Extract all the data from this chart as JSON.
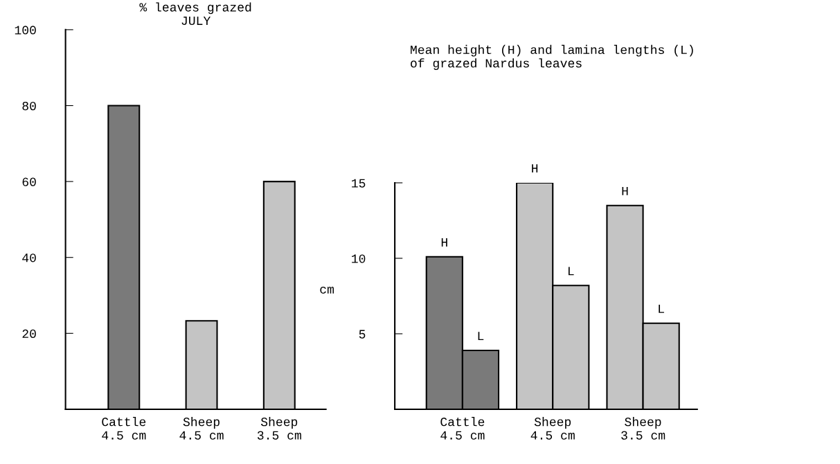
{
  "chart_data": [
    {
      "type": "bar",
      "title": "% leaves grazed\nJULY",
      "categories": [
        "Cattle\n4.5 cm",
        "Sheep\n4.5 cm",
        "Sheep\n3.5 cm"
      ],
      "values": [
        80,
        23.3,
        60
      ],
      "colors": [
        "#7a7a7a",
        "#c4c4c4",
        "#c4c4c4"
      ],
      "ylim": [
        0,
        100
      ],
      "yticks": [
        {
          "value": 0,
          "label": null
        },
        20,
        40,
        60,
        80,
        100
      ],
      "grid": false
    },
    {
      "type": "bar",
      "title": "Mean height (H) and lamina lengths (L)\nof grazed Nardus leaves",
      "ylabel": "cm",
      "categories": [
        "Cattle\n4.5 cm",
        "Sheep\n4.5 cm",
        "Sheep\n3.5 cm"
      ],
      "series": [
        {
          "name": "H",
          "colors": [
            "#7a7a7a",
            "#c4c4c4",
            "#c4c4c4"
          ],
          "values": [
            10.1,
            15,
            13.5
          ]
        },
        {
          "name": "L",
          "colors": [
            "#7a7a7a",
            "#c4c4c4",
            "#c4c4c4"
          ],
          "values": [
            3.9,
            8.2,
            5.7
          ]
        }
      ],
      "ylim": [
        0,
        15
      ],
      "yticks": [
        {
          "value": 0,
          "label": null
        },
        5,
        10,
        15
      ],
      "grid": false
    }
  ]
}
